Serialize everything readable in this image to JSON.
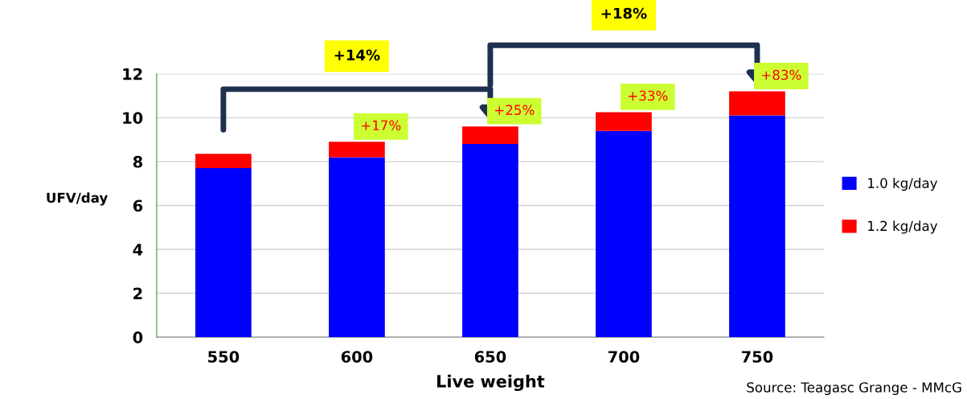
{
  "chart_data": {
    "type": "bar",
    "stacked": true,
    "xlabel": "Live weight",
    "ylabel": "UFV/day",
    "categories": [
      "550",
      "600",
      "650",
      "700",
      "750"
    ],
    "series": [
      {
        "name": "1.0 kg/day",
        "color": "#0000ff",
        "values": [
          7.7,
          8.2,
          8.8,
          9.4,
          10.1
        ]
      },
      {
        "name": "1.2 kg/day",
        "color": "#ff0000",
        "values": [
          0.65,
          0.7,
          0.8,
          0.85,
          1.1
        ]
      }
    ],
    "ylim": [
      0,
      12
    ],
    "yticks": [
      0,
      2,
      4,
      6,
      8,
      10,
      12
    ],
    "grid": "y",
    "legend": "right",
    "annotations": [
      "+17%",
      "+25%",
      "+33%",
      "+83%",
      "+14%",
      "+18%",
      "Source: Teagasc Grange - MMcG"
    ]
  }
}
